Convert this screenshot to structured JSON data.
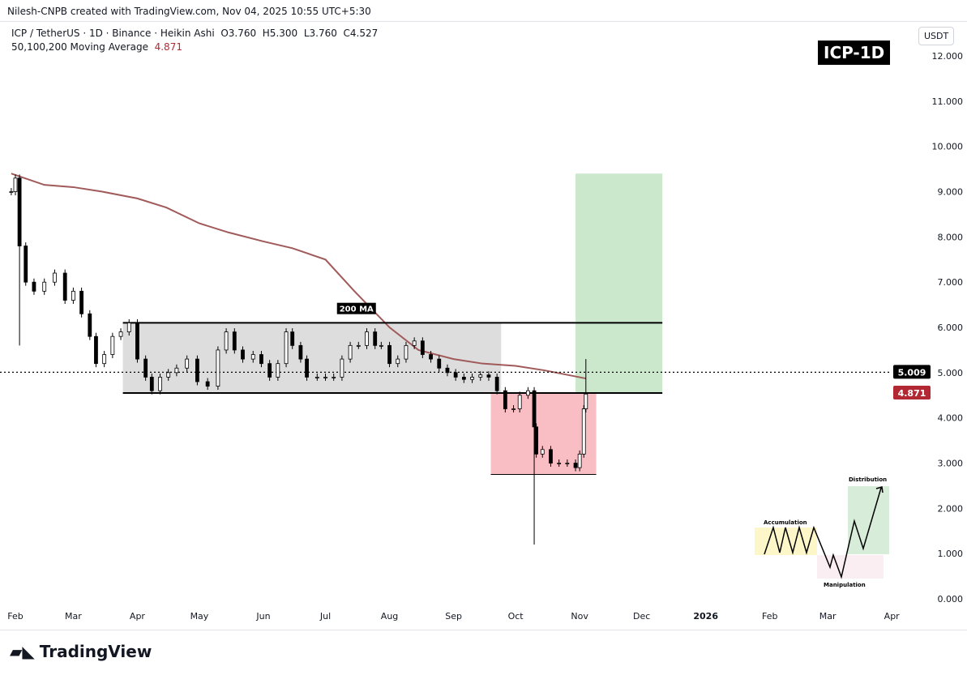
{
  "credit": "Nilesh-CNPB created with TradingView.com, Nov 04, 2025 10:55 UTC+5:30",
  "legend": {
    "symbol": "ICP / TetherUS · 1D · Binance · Heikin Ashi",
    "o": "O3.760",
    "h": "H5.300",
    "l": "L3.760",
    "c": "C4.527",
    "ma_label": "50,100,200 Moving Average",
    "ma_value": "4.871"
  },
  "badge": "ICP-1D",
  "currency": "USDT",
  "logo": "TradingView",
  "chart_data": {
    "type": "candlestick",
    "ylim": [
      0,
      12.5
    ],
    "yticks": [
      "12.000",
      "11.000",
      "10.000",
      "9.000",
      "8.000",
      "7.000",
      "6.000",
      "5.000",
      "4.000",
      "3.000",
      "2.000",
      "1.000",
      "0.000"
    ],
    "xticks": [
      {
        "label": "Feb",
        "date": "2025-02-01"
      },
      {
        "label": "Mar",
        "date": "2025-03-01"
      },
      {
        "label": "Apr",
        "date": "2025-04-01"
      },
      {
        "label": "May",
        "date": "2025-05-01"
      },
      {
        "label": "Jun",
        "date": "2025-06-01"
      },
      {
        "label": "Jul",
        "date": "2025-07-01"
      },
      {
        "label": "Aug",
        "date": "2025-08-01"
      },
      {
        "label": "Sep",
        "date": "2025-09-01"
      },
      {
        "label": "Oct",
        "date": "2025-10-01"
      },
      {
        "label": "Nov",
        "date": "2025-11-01"
      },
      {
        "label": "Dec",
        "date": "2025-12-01"
      },
      {
        "label": "2026",
        "date": "2026-01-01"
      },
      {
        "label": "Feb",
        "date": "2026-02-01"
      },
      {
        "label": "Mar",
        "date": "2026-03-01"
      },
      {
        "label": "Apr",
        "date": "2026-04-01"
      }
    ],
    "closes": [
      [
        "2025-01-30",
        9.0
      ],
      [
        "2025-02-01",
        9.3
      ],
      [
        "2025-02-03",
        7.8
      ],
      [
        "2025-02-06",
        7.0
      ],
      [
        "2025-02-10",
        6.8
      ],
      [
        "2025-02-15",
        7.0
      ],
      [
        "2025-02-20",
        7.2
      ],
      [
        "2025-02-25",
        6.6
      ],
      [
        "2025-03-01",
        6.8
      ],
      [
        "2025-03-05",
        6.3
      ],
      [
        "2025-03-09",
        5.8
      ],
      [
        "2025-03-12",
        5.2
      ],
      [
        "2025-03-16",
        5.4
      ],
      [
        "2025-03-20",
        5.8
      ],
      [
        "2025-03-24",
        5.9
      ],
      [
        "2025-03-28",
        6.1
      ],
      [
        "2025-04-01",
        5.3
      ],
      [
        "2025-04-05",
        4.9
      ],
      [
        "2025-04-08",
        4.6
      ],
      [
        "2025-04-12",
        4.9
      ],
      [
        "2025-04-16",
        5.0
      ],
      [
        "2025-04-20",
        5.1
      ],
      [
        "2025-04-25",
        5.3
      ],
      [
        "2025-04-30",
        4.8
      ],
      [
        "2025-05-05",
        4.7
      ],
      [
        "2025-05-10",
        5.5
      ],
      [
        "2025-05-14",
        5.9
      ],
      [
        "2025-05-18",
        5.5
      ],
      [
        "2025-05-22",
        5.3
      ],
      [
        "2025-05-27",
        5.4
      ],
      [
        "2025-05-31",
        5.2
      ],
      [
        "2025-06-04",
        4.9
      ],
      [
        "2025-06-08",
        5.2
      ],
      [
        "2025-06-12",
        5.9
      ],
      [
        "2025-06-15",
        5.6
      ],
      [
        "2025-06-19",
        5.3
      ],
      [
        "2025-06-22",
        4.9
      ],
      [
        "2025-06-27",
        4.9
      ],
      [
        "2025-07-01",
        4.9
      ],
      [
        "2025-07-05",
        4.9
      ],
      [
        "2025-07-09",
        5.3
      ],
      [
        "2025-07-13",
        5.6
      ],
      [
        "2025-07-17",
        5.6
      ],
      [
        "2025-07-21",
        5.9
      ],
      [
        "2025-07-25",
        5.6
      ],
      [
        "2025-07-28",
        5.6
      ],
      [
        "2025-08-01",
        5.2
      ],
      [
        "2025-08-05",
        5.3
      ],
      [
        "2025-08-09",
        5.6
      ],
      [
        "2025-08-13",
        5.7
      ],
      [
        "2025-08-17",
        5.4
      ],
      [
        "2025-08-21",
        5.3
      ],
      [
        "2025-08-25",
        5.1
      ],
      [
        "2025-08-29",
        5.0
      ],
      [
        "2025-09-02",
        4.9
      ],
      [
        "2025-09-06",
        4.85
      ],
      [
        "2025-09-10",
        4.9
      ],
      [
        "2025-09-14",
        4.95
      ],
      [
        "2025-09-18",
        4.9
      ],
      [
        "2025-09-22",
        4.6
      ],
      [
        "2025-09-26",
        4.2
      ],
      [
        "2025-09-30",
        4.2
      ],
      [
        "2025-10-03",
        4.5
      ],
      [
        "2025-10-07",
        4.6
      ],
      [
        "2025-10-10",
        3.8
      ],
      [
        "2025-10-11",
        3.2
      ],
      [
        "2025-10-14",
        3.3
      ],
      [
        "2025-10-18",
        3.0
      ],
      [
        "2025-10-22",
        3.0
      ],
      [
        "2025-10-26",
        3.0
      ],
      [
        "2025-10-30",
        2.9
      ],
      [
        "2025-11-01",
        3.2
      ],
      [
        "2025-11-03",
        4.2
      ],
      [
        "2025-11-04",
        4.527
      ]
    ],
    "wicks": [
      {
        "date": "2025-02-03",
        "low": 5.6
      },
      {
        "date": "2025-10-10",
        "low": 1.2
      },
      {
        "date": "2025-11-04",
        "high": 5.3
      }
    ],
    "ma200": [
      [
        "2025-01-30",
        9.4
      ],
      [
        "2025-02-15",
        9.15
      ],
      [
        "2025-03-01",
        9.1
      ],
      [
        "2025-03-15",
        9.0
      ],
      [
        "2025-04-01",
        8.85
      ],
      [
        "2025-04-15",
        8.65
      ],
      [
        "2025-05-01",
        8.3
      ],
      [
        "2025-05-15",
        8.1
      ],
      [
        "2025-06-01",
        7.9
      ],
      [
        "2025-06-15",
        7.75
      ],
      [
        "2025-07-01",
        7.5
      ],
      [
        "2025-07-15",
        6.8
      ],
      [
        "2025-08-01",
        6.0
      ],
      [
        "2025-08-15",
        5.5
      ],
      [
        "2025-09-01",
        5.3
      ],
      [
        "2025-09-15",
        5.2
      ],
      [
        "2025-10-01",
        5.15
      ],
      [
        "2025-10-15",
        5.05
      ],
      [
        "2025-11-04",
        4.871
      ]
    ],
    "ma_color": "#a05a5a",
    "last_price": {
      "value": "5.009",
      "price": 5.009
    },
    "ma_tag": {
      "value": "4.871",
      "price": 4.871,
      "color": "#b22833"
    },
    "range_box": {
      "from": "2025-03-25",
      "to": "2025-09-24",
      "low": 4.55,
      "high": 6.1,
      "color": "#d9d9d9"
    },
    "resistance": {
      "price": 6.1,
      "from": "2025-03-25",
      "to": "2025-12-11"
    },
    "support": {
      "price": 4.55,
      "from": "2025-03-25",
      "to": "2025-12-11"
    },
    "drop_box": {
      "from": "2025-09-19",
      "to": "2025-11-09",
      "low": 2.75,
      "high": 4.55,
      "color": "#f7b7bd"
    },
    "target_box": {
      "from": "2025-10-30",
      "to": "2025-12-11",
      "low": 4.55,
      "high": 9.4,
      "color": "#c8e6c9"
    },
    "ma_annotation": "200 MA",
    "inset": {
      "accumulation": "Accumulation",
      "manipulation": "Manipulation",
      "distribution": "Distribution"
    }
  }
}
